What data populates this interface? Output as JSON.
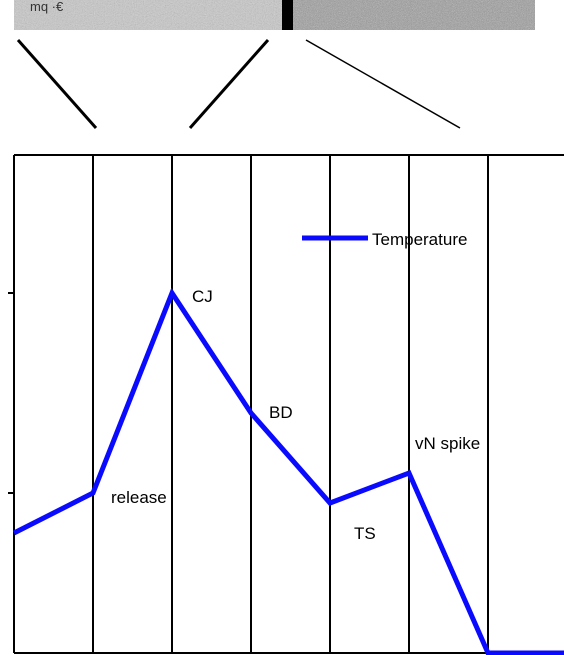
{
  "chart_data": {
    "type": "line",
    "title": "",
    "xlabel": "",
    "ylabel": "",
    "x": [
      0,
      1,
      2,
      3,
      4,
      5,
      6,
      7
    ],
    "xlim": [
      0,
      7
    ],
    "ylim": [
      0,
      8
    ],
    "grid": {
      "vertical": true,
      "horizontal": false
    },
    "legend": {
      "position": "top-right"
    },
    "series": [
      {
        "name": "Temperature",
        "color": "#0a0aff",
        "x": [
          0,
          1,
          2,
          3,
          4,
          5,
          6,
          7
        ],
        "values": [
          3.2,
          4.0,
          8.0,
          5.6,
          3.8,
          4.4,
          0.8,
          0.8
        ]
      }
    ],
    "annotations": [
      {
        "text": "release",
        "x": 1,
        "y": 4.0
      },
      {
        "text": "CJ",
        "x": 2,
        "y": 8.0
      },
      {
        "text": "BD",
        "x": 3,
        "y": 5.6
      },
      {
        "text": "TS",
        "x": 4,
        "y": 3.8
      },
      {
        "text": "vN spike",
        "x": 5,
        "y": 4.4
      }
    ]
  },
  "photo_strip": {
    "caption_fragment": "mq ·€"
  }
}
